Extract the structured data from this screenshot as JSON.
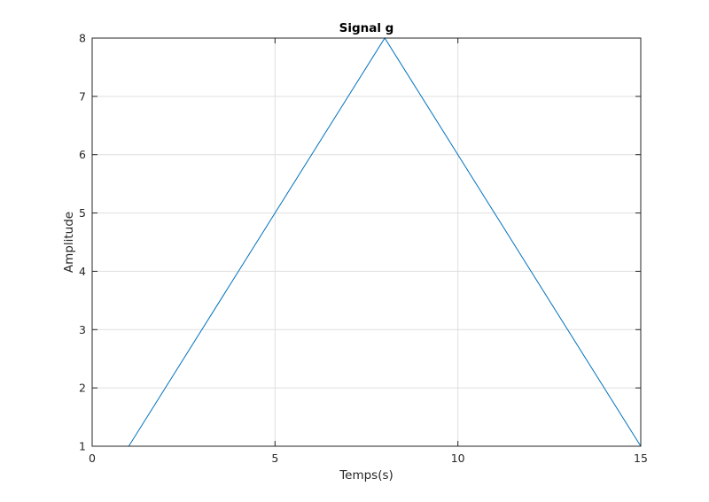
{
  "chart_data": {
    "type": "line",
    "title": "Signal g",
    "xlabel": "Temps(s)",
    "ylabel": "Amplitude",
    "xlim": [
      0,
      15
    ],
    "ylim": [
      1,
      8
    ],
    "xticks": [
      0,
      5,
      10,
      15
    ],
    "yticks": [
      1,
      2,
      3,
      4,
      5,
      6,
      7,
      8
    ],
    "grid": true,
    "series": [
      {
        "x": [
          1,
          8,
          15
        ],
        "y": [
          1,
          8,
          1
        ],
        "color": "#0072bd"
      }
    ]
  }
}
